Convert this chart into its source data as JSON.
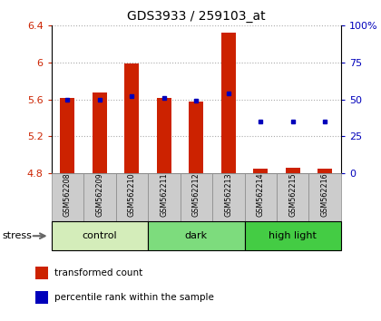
{
  "title": "GDS3933 / 259103_at",
  "samples": [
    "GSM562208",
    "GSM562209",
    "GSM562210",
    "GSM562211",
    "GSM562212",
    "GSM562213",
    "GSM562214",
    "GSM562215",
    "GSM562216"
  ],
  "transformed_counts": [
    5.62,
    5.68,
    5.99,
    5.62,
    5.58,
    6.32,
    4.85,
    4.86,
    4.85
  ],
  "percentile_ranks": [
    50,
    50,
    52,
    51,
    49,
    54,
    35,
    35,
    35
  ],
  "ylim_left": [
    4.8,
    6.4
  ],
  "ylim_right": [
    0,
    100
  ],
  "yticks_left": [
    4.8,
    5.2,
    5.6,
    6.0,
    6.4
  ],
  "yticks_right": [
    0,
    25,
    50,
    75,
    100
  ],
  "ytick_labels_left": [
    "4.8",
    "5.2",
    "5.6",
    "6",
    "6.4"
  ],
  "ytick_labels_right": [
    "0",
    "25",
    "50",
    "75",
    "100%"
  ],
  "groups": [
    {
      "label": "control",
      "start": 0,
      "end": 3,
      "color": "#d4edba"
    },
    {
      "label": "dark",
      "start": 3,
      "end": 6,
      "color": "#7ddc7d"
    },
    {
      "label": "high light",
      "start": 6,
      "end": 9,
      "color": "#44cc44"
    }
  ],
  "group_row_label": "stress",
  "bar_color": "#cc2200",
  "dot_color": "#0000bb",
  "bar_width": 0.45,
  "grid_color": "#aaaaaa",
  "tick_color_left": "#cc2200",
  "tick_color_right": "#0000bb",
  "background_plot": "#ffffff",
  "background_label": "#cccccc",
  "legend_items": [
    {
      "color": "#cc2200",
      "label": "transformed count"
    },
    {
      "color": "#0000bb",
      "label": "percentile rank within the sample"
    }
  ]
}
